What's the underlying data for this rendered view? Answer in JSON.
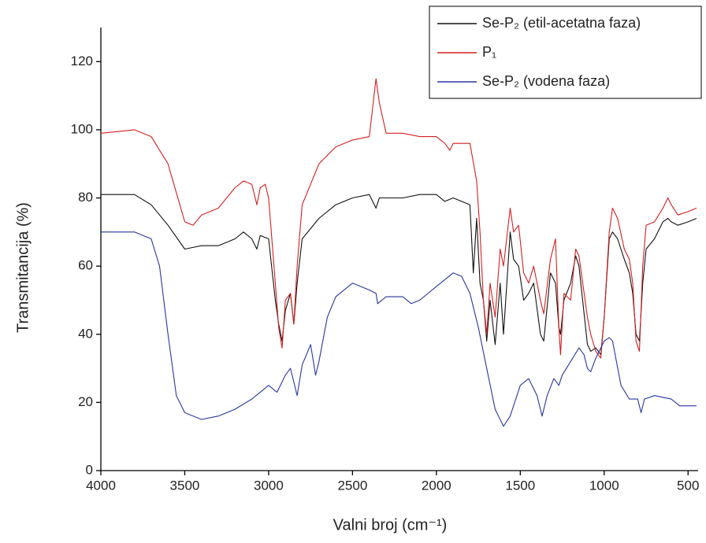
{
  "chart_data": {
    "type": "line",
    "xlabel": "Valni broj (cm⁻¹)",
    "ylabel": "Transmitancija (%)",
    "xlim": [
      4000,
      440
    ],
    "ylim": [
      0,
      130
    ],
    "xticks": [
      4000,
      3500,
      3000,
      2500,
      2000,
      1500,
      1000,
      500
    ],
    "yticks": [
      0,
      20,
      40,
      60,
      80,
      100,
      120
    ],
    "legend": "top-right",
    "series": [
      {
        "name": "Se-P₂ (etil-acetatna faza)",
        "color": "#111111",
        "x": [
          4000,
          3800,
          3700,
          3600,
          3500,
          3400,
          3300,
          3200,
          3150,
          3100,
          3070,
          3050,
          3000,
          2960,
          2940,
          2920,
          2900,
          2870,
          2850,
          2830,
          2800,
          2700,
          2600,
          2500,
          2400,
          2360,
          2340,
          2300,
          2200,
          2100,
          2000,
          1950,
          1900,
          1800,
          1780,
          1760,
          1740,
          1720,
          1700,
          1680,
          1650,
          1620,
          1600,
          1560,
          1540,
          1510,
          1480,
          1450,
          1420,
          1380,
          1360,
          1320,
          1290,
          1270,
          1260,
          1240,
          1200,
          1170,
          1150,
          1100,
          1080,
          1050,
          1020,
          1000,
          970,
          950,
          920,
          880,
          850,
          830,
          810,
          790,
          770,
          750,
          700,
          650,
          620,
          600,
          560,
          500,
          450
        ],
        "values": [
          81,
          81,
          78,
          72,
          65,
          66,
          66,
          68,
          70,
          68,
          65,
          69,
          68,
          50,
          43,
          38,
          47,
          52,
          43,
          55,
          68,
          74,
          78,
          80,
          81,
          77,
          80,
          80,
          80,
          81,
          81,
          79,
          80,
          78,
          58,
          74,
          55,
          50,
          38,
          50,
          37,
          55,
          40,
          70,
          62,
          60,
          50,
          52,
          55,
          40,
          38,
          58,
          55,
          42,
          40,
          50,
          55,
          63,
          60,
          37,
          35,
          36,
          34,
          45,
          68,
          70,
          68,
          62,
          58,
          52,
          40,
          38,
          55,
          65,
          68,
          73,
          74,
          73,
          72,
          73,
          74
        ]
      },
      {
        "name": "P₁",
        "color": "#d42020",
        "x": [
          4000,
          3800,
          3700,
          3600,
          3500,
          3450,
          3400,
          3300,
          3200,
          3150,
          3100,
          3070,
          3050,
          3020,
          3000,
          2960,
          2940,
          2920,
          2900,
          2870,
          2850,
          2830,
          2800,
          2700,
          2600,
          2500,
          2400,
          2360,
          2340,
          2300,
          2200,
          2100,
          2000,
          1950,
          1920,
          1900,
          1800,
          1760,
          1740,
          1720,
          1700,
          1680,
          1650,
          1620,
          1600,
          1560,
          1540,
          1510,
          1480,
          1450,
          1420,
          1380,
          1360,
          1320,
          1290,
          1270,
          1260,
          1240,
          1200,
          1170,
          1150,
          1100,
          1080,
          1050,
          1020,
          1000,
          970,
          950,
          920,
          880,
          850,
          830,
          810,
          790,
          770,
          750,
          700,
          650,
          620,
          600,
          560,
          500,
          450
        ],
        "values": [
          99,
          100,
          98,
          90,
          73,
          72,
          75,
          77,
          83,
          85,
          84,
          78,
          83,
          84,
          80,
          55,
          42,
          36,
          50,
          52,
          43,
          60,
          78,
          90,
          95,
          97,
          98,
          115,
          108,
          99,
          99,
          98,
          98,
          96,
          94,
          96,
          96,
          85,
          70,
          50,
          40,
          55,
          45,
          65,
          60,
          77,
          70,
          72,
          58,
          55,
          60,
          50,
          46,
          62,
          68,
          42,
          34,
          52,
          50,
          65,
          63,
          45,
          40,
          35,
          33,
          45,
          70,
          77,
          74,
          65,
          62,
          55,
          38,
          35,
          60,
          72,
          73,
          77,
          80,
          78,
          75,
          76,
          77
        ]
      },
      {
        "name": "Se-P₂ (vodena faza)",
        "color": "#2a35a0",
        "x": [
          4000,
          3800,
          3700,
          3650,
          3600,
          3550,
          3500,
          3400,
          3300,
          3200,
          3100,
          3000,
          2950,
          2900,
          2870,
          2850,
          2830,
          2800,
          2750,
          2720,
          2700,
          2650,
          2600,
          2500,
          2400,
          2360,
          2350,
          2300,
          2200,
          2150,
          2100,
          2000,
          1900,
          1850,
          1800,
          1750,
          1700,
          1650,
          1600,
          1560,
          1500,
          1450,
          1400,
          1370,
          1340,
          1300,
          1270,
          1250,
          1200,
          1150,
          1120,
          1100,
          1080,
          1050,
          1000,
          970,
          950,
          900,
          850,
          800,
          780,
          760,
          700,
          600,
          550,
          500,
          450
        ],
        "values": [
          70,
          70,
          68,
          60,
          40,
          22,
          17,
          15,
          16,
          18,
          21,
          25,
          23,
          28,
          30,
          26,
          22,
          31,
          37,
          28,
          32,
          45,
          51,
          55,
          53,
          52,
          49,
          51,
          51,
          49,
          50,
          54,
          58,
          57,
          52,
          42,
          30,
          18,
          13,
          16,
          25,
          27,
          22,
          16,
          22,
          27,
          25,
          28,
          32,
          36,
          34,
          30,
          29,
          33,
          38,
          39,
          38,
          25,
          21,
          21,
          17,
          21,
          22,
          21,
          19,
          19,
          19
        ]
      }
    ]
  }
}
